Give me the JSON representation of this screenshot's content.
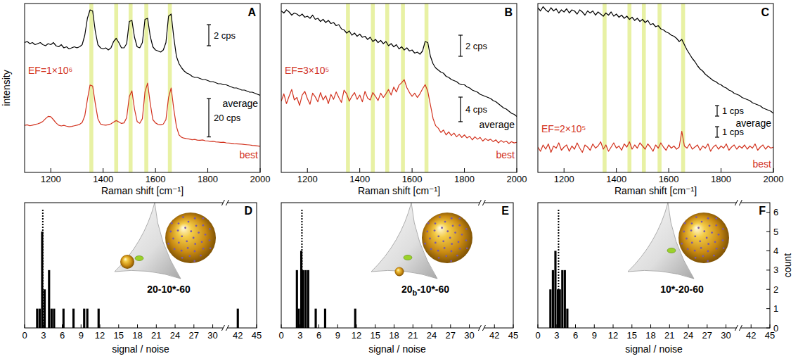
{
  "chart_data": [
    {
      "type": "line",
      "title": "A",
      "xlabel": "Raman shift [cm⁻¹]",
      "ylabel": "intensity",
      "x": [
        1100,
        1110,
        1120,
        1130,
        1140,
        1150,
        1160,
        1170,
        1180,
        1190,
        1200,
        1210,
        1220,
        1230,
        1240,
        1250,
        1260,
        1270,
        1280,
        1290,
        1300,
        1310,
        1320,
        1330,
        1340,
        1350,
        1360,
        1370,
        1380,
        1390,
        1400,
        1410,
        1420,
        1430,
        1440,
        1450,
        1460,
        1470,
        1480,
        1490,
        1500,
        1510,
        1520,
        1530,
        1540,
        1550,
        1560,
        1570,
        1580,
        1590,
        1600,
        1610,
        1620,
        1630,
        1640,
        1650,
        1660,
        1670,
        1680,
        1690,
        1700,
        1710,
        1720,
        1730,
        1740,
        1750,
        1760,
        1770,
        1780,
        1790,
        1800,
        1810,
        1820,
        1830,
        1840,
        1850,
        1860,
        1870,
        1880,
        1890,
        1900,
        1910,
        1920,
        1930,
        1940,
        1950,
        1960,
        1970,
        1980,
        1990,
        2000
      ],
      "xlim": [
        1100,
        2000
      ],
      "xticks": [
        1200,
        1400,
        1600,
        1800,
        2000
      ],
      "tick_labels": "x",
      "bands": [
        1355,
        1450,
        1505,
        1565,
        1655
      ],
      "series": [
        {
          "name": "average",
          "color": "#000000",
          "ylim": [
            0,
            16
          ],
          "scale_bar": {
            "value": 2,
            "label": "2 cps"
          },
          "values": [
            12.3,
            12.4,
            12.2,
            12.3,
            12.1,
            12.2,
            12.3,
            12.1,
            12.0,
            12.2,
            12.1,
            12.3,
            12.0,
            11.9,
            12.1,
            11.8,
            11.9,
            11.7,
            11.8,
            11.9,
            11.8,
            11.9,
            12.1,
            13.0,
            14.6,
            15.4,
            15.3,
            13.4,
            12.1,
            11.8,
            11.7,
            11.8,
            11.6,
            11.8,
            12.4,
            12.7,
            12.3,
            11.8,
            11.8,
            12.2,
            14.3,
            14.4,
            12.8,
            11.9,
            11.8,
            12.3,
            14.5,
            14.6,
            12.9,
            11.9,
            11.6,
            11.5,
            11.4,
            11.6,
            12.3,
            14.8,
            15.0,
            12.8,
            11.0,
            10.3,
            9.9,
            9.6,
            9.4,
            9.3,
            9.1,
            9.0,
            9.0,
            8.9,
            8.8,
            8.8,
            8.7,
            8.6,
            8.6,
            8.5,
            8.4,
            8.4,
            8.3,
            8.3,
            8.2,
            8.1,
            8.0,
            8.0,
            7.9,
            7.8,
            7.8,
            7.7,
            7.6,
            7.6,
            7.5,
            7.4,
            7.3
          ]
        },
        {
          "name": "best",
          "color": "#d2321e",
          "annotation": "EF=1×10⁶",
          "ylim": [
            0,
            88
          ],
          "scale_bar": {
            "value": 20,
            "label": "20 cps"
          },
          "values": [
            24.5,
            24.8,
            24.3,
            24.6,
            25.0,
            25.3,
            25.8,
            26.6,
            28.0,
            29.2,
            29.0,
            27.5,
            25.8,
            24.6,
            24.2,
            24.5,
            24.1,
            23.8,
            24.0,
            24.3,
            24.6,
            25.0,
            26.0,
            29.5,
            38.0,
            45.5,
            45.0,
            36.0,
            28.0,
            25.2,
            24.8,
            24.6,
            24.9,
            25.3,
            26.2,
            27.0,
            26.3,
            25.5,
            25.8,
            28.5,
            39.5,
            42.5,
            33.0,
            26.5,
            25.6,
            28.0,
            42.0,
            46.5,
            36.0,
            27.5,
            25.8,
            25.0,
            24.8,
            25.2,
            27.5,
            39.0,
            44.0,
            33.0,
            24.0,
            19.5,
            18.3,
            17.8,
            17.6,
            17.4,
            17.0,
            17.2,
            16.8,
            16.7,
            16.9,
            16.5,
            16.4,
            16.2,
            16.3,
            15.9,
            15.8,
            15.6,
            15.7,
            15.4,
            15.3,
            15.2,
            15.0,
            14.9,
            14.8,
            14.7,
            14.5,
            14.4,
            14.3,
            14.1,
            14.0,
            13.8,
            13.6
          ]
        }
      ]
    },
    {
      "type": "line",
      "title": "B",
      "xlabel": "Raman shift [cm⁻¹]",
      "x": [
        1100,
        1110,
        1120,
        1130,
        1140,
        1150,
        1160,
        1170,
        1180,
        1190,
        1200,
        1210,
        1220,
        1230,
        1240,
        1250,
        1260,
        1270,
        1280,
        1290,
        1300,
        1310,
        1320,
        1330,
        1340,
        1350,
        1360,
        1370,
        1380,
        1390,
        1400,
        1410,
        1420,
        1430,
        1440,
        1450,
        1460,
        1470,
        1480,
        1490,
        1500,
        1510,
        1520,
        1530,
        1540,
        1550,
        1560,
        1570,
        1580,
        1590,
        1600,
        1610,
        1620,
        1630,
        1640,
        1650,
        1660,
        1670,
        1680,
        1690,
        1700,
        1710,
        1720,
        1730,
        1740,
        1750,
        1760,
        1770,
        1780,
        1790,
        1800,
        1810,
        1820,
        1830,
        1840,
        1850,
        1860,
        1870,
        1880,
        1890,
        1900,
        1910,
        1920,
        1930,
        1940,
        1950,
        1960,
        1970,
        1980,
        1990,
        2000
      ],
      "xlim": [
        1100,
        2000
      ],
      "xticks": [
        1200,
        1400,
        1600,
        1800,
        2000
      ],
      "tick_labels": "x",
      "bands": [
        1355,
        1450,
        1505,
        1565,
        1655
      ],
      "series": [
        {
          "name": "average",
          "color": "#000000",
          "ylim": [
            0,
            16
          ],
          "scale_bar": {
            "value": 2,
            "label": "2 cps"
          },
          "values": [
            15.3,
            15.1,
            15.4,
            15.2,
            14.9,
            15.1,
            15.0,
            14.8,
            15.0,
            14.7,
            14.8,
            14.6,
            14.9,
            14.5,
            14.6,
            14.3,
            14.5,
            14.2,
            14.4,
            14.1,
            14.2,
            13.9,
            14.0,
            13.6,
            13.5,
            13.2,
            13.4,
            13.0,
            13.2,
            12.9,
            13.1,
            12.8,
            12.9,
            12.6,
            12.8,
            12.4,
            12.6,
            12.3,
            12.5,
            12.2,
            12.4,
            12.0,
            12.2,
            11.9,
            12.1,
            11.7,
            11.9,
            11.6,
            11.8,
            11.5,
            11.6,
            11.3,
            11.4,
            11.2,
            11.5,
            12.4,
            12.3,
            11.0,
            10.3,
            9.9,
            9.7,
            9.5,
            9.4,
            9.1,
            9.0,
            8.8,
            8.7,
            8.6,
            8.4,
            8.3,
            8.3,
            8.1,
            8.0,
            7.8,
            7.7,
            7.6,
            7.4,
            7.3,
            7.2,
            7.1,
            7.0,
            6.8,
            6.7,
            6.5,
            6.3,
            6.1,
            6.0,
            5.8,
            5.6,
            5.5,
            5.3
          ]
        },
        {
          "name": "best",
          "color": "#d2321e",
          "annotation": "EF=3×10⁵",
          "ylim": [
            0,
            27.5
          ],
          "scale_bar": {
            "value": 4,
            "label": "4 cps"
          },
          "values": [
            11.6,
            12.8,
            11.2,
            12.4,
            13.5,
            11.8,
            12.2,
            10.9,
            12.6,
            13.2,
            12.0,
            11.1,
            12.9,
            12.3,
            11.5,
            13.0,
            11.8,
            12.5,
            11.2,
            12.7,
            11.9,
            13.1,
            12.2,
            11.4,
            13.4,
            12.8,
            11.6,
            12.4,
            13.0,
            11.9,
            12.6,
            11.5,
            13.2,
            12.1,
            11.8,
            13.0,
            12.4,
            11.7,
            12.9,
            12.2,
            12.8,
            13.5,
            12.6,
            13.9,
            13.1,
            14.2,
            14.6,
            15.1,
            13.8,
            13.0,
            12.4,
            12.9,
            12.2,
            12.8,
            13.6,
            14.3,
            13.2,
            11.0,
            8.8,
            7.6,
            7.2,
            6.5,
            6.9,
            6.1,
            6.6,
            6.0,
            6.4,
            5.8,
            6.2,
            5.7,
            6.1,
            5.6,
            5.9,
            5.3,
            5.8,
            5.4,
            5.7,
            5.1,
            5.5,
            5.2,
            5.4,
            5.0,
            5.3,
            4.8,
            5.2,
            4.9,
            5.1,
            4.7,
            5.0,
            4.8,
            4.9
          ]
        }
      ]
    },
    {
      "type": "line",
      "title": "C",
      "xlabel": "Raman shift [cm⁻¹]",
      "x": [
        1100,
        1110,
        1120,
        1130,
        1140,
        1150,
        1160,
        1170,
        1180,
        1190,
        1200,
        1210,
        1220,
        1230,
        1240,
        1250,
        1260,
        1270,
        1280,
        1290,
        1300,
        1310,
        1320,
        1330,
        1340,
        1350,
        1360,
        1370,
        1380,
        1390,
        1400,
        1410,
        1420,
        1430,
        1440,
        1450,
        1460,
        1470,
        1480,
        1490,
        1500,
        1510,
        1520,
        1530,
        1540,
        1550,
        1560,
        1570,
        1580,
        1590,
        1600,
        1610,
        1620,
        1630,
        1640,
        1650,
        1660,
        1670,
        1680,
        1690,
        1700,
        1710,
        1720,
        1730,
        1740,
        1750,
        1760,
        1770,
        1780,
        1790,
        1800,
        1810,
        1820,
        1830,
        1840,
        1850,
        1860,
        1870,
        1880,
        1890,
        1900,
        1910,
        1920,
        1930,
        1940,
        1950,
        1960,
        1970,
        1980,
        1990,
        2000
      ],
      "xlim": [
        1100,
        2000
      ],
      "xticks": [
        1200,
        1400,
        1600,
        1800,
        2000
      ],
      "tick_labels": "x",
      "bands": [
        1355,
        1450,
        1505,
        1565,
        1655
      ],
      "series": [
        {
          "name": "average",
          "color": "#000000",
          "ylim": [
            0,
            16
          ],
          "scale_bar": {
            "value": 1,
            "label": "1 cps"
          },
          "values": [
            15.6,
            15.3,
            15.7,
            15.4,
            15.2,
            15.6,
            15.3,
            15.5,
            15.1,
            15.4,
            15.2,
            15.5,
            15.1,
            15.4,
            15.3,
            15.0,
            15.4,
            15.2,
            14.9,
            15.3,
            15.1,
            15.3,
            14.9,
            15.2,
            15.0,
            14.8,
            15.1,
            14.9,
            15.2,
            14.8,
            15.0,
            14.7,
            14.9,
            14.6,
            14.8,
            14.5,
            14.7,
            14.4,
            14.6,
            14.3,
            14.5,
            14.2,
            14.4,
            14.0,
            14.1,
            13.8,
            13.9,
            13.6,
            13.5,
            13.3,
            13.2,
            13.0,
            12.9,
            12.7,
            12.4,
            12.6,
            12.1,
            11.6,
            11.2,
            10.8,
            10.5,
            10.1,
            9.8,
            9.6,
            9.3,
            9.1,
            8.9,
            8.7,
            8.6,
            8.4,
            8.3,
            8.1,
            8.0,
            7.8,
            7.7,
            7.5,
            7.4,
            7.3,
            7.1,
            7.0,
            6.9,
            6.8,
            6.6,
            6.5,
            6.4,
            6.3,
            6.1,
            6.0,
            5.9,
            5.8,
            5.6
          ]
        },
        {
          "name": "best",
          "color": "#d2321e",
          "annotation": "EF=2×10⁵",
          "ylim": [
            0,
            16
          ],
          "scale_bar": {
            "value": 1,
            "label": "1 cps"
          },
          "values": [
            2.4,
            2.0,
            2.6,
            2.2,
            2.7,
            1.9,
            2.5,
            2.3,
            2.8,
            2.1,
            2.4,
            2.6,
            2.0,
            2.5,
            2.2,
            2.8,
            2.3,
            1.9,
            2.6,
            2.4,
            2.1,
            2.7,
            2.3,
            2.5,
            2.9,
            2.2,
            2.6,
            2.0,
            2.4,
            2.8,
            2.3,
            2.5,
            2.1,
            2.7,
            2.4,
            2.9,
            2.2,
            2.6,
            2.3,
            2.8,
            2.5,
            2.2,
            2.7,
            2.4,
            2.0,
            2.6,
            2.3,
            2.8,
            2.4,
            2.1,
            2.6,
            2.3,
            2.5,
            2.2,
            2.4,
            3.9,
            2.5,
            2.3,
            2.7,
            2.2,
            2.4,
            2.6,
            2.1,
            2.5,
            2.3,
            2.7,
            2.0,
            2.4,
            2.6,
            2.2,
            2.5,
            2.3,
            2.7,
            2.1,
            2.4,
            2.6,
            2.2,
            2.5,
            2.3,
            2.6,
            2.2,
            2.5,
            2.3,
            2.7,
            2.1,
            2.4,
            2.6,
            2.2,
            2.5,
            2.3,
            2.4
          ]
        }
      ]
    },
    {
      "type": "histogram",
      "title": "D",
      "label": "20-10*-60",
      "xlabel": "signal / noise",
      "x": [
        2.0,
        2.4,
        2.8,
        3.2,
        3.9,
        4.3,
        4.7,
        6.2,
        7.8,
        9.5,
        10.0,
        11.8,
        42.0
      ],
      "values": [
        1,
        1,
        5,
        2,
        3,
        1,
        1,
        1,
        1,
        1,
        1,
        1,
        1
      ],
      "bin_width": 0.35,
      "reference_x": 2.9,
      "color": "#000000",
      "xlim": [
        0,
        45
      ],
      "axis_break": [
        32,
        40
      ],
      "xticks": [
        0,
        3,
        6,
        9,
        12,
        15,
        18,
        21,
        24,
        27,
        30,
        42,
        45
      ],
      "ylim": [
        0,
        6.5
      ],
      "tick_labels": "x"
    },
    {
      "type": "histogram",
      "title": "E",
      "label": "20b-10*-60",
      "xlabel": "signal / noise",
      "x": [
        2.5,
        2.8,
        3.2,
        3.5,
        3.9,
        4.3,
        5.5,
        7.0,
        11.8
      ],
      "values": [
        3,
        1,
        4,
        3,
        3,
        3,
        1,
        1,
        1
      ],
      "bin_width": 0.35,
      "reference_x": 3.3,
      "color": "#000000",
      "xlim": [
        0,
        45
      ],
      "axis_break": [
        32,
        40
      ],
      "xticks": [
        0,
        3,
        6,
        9,
        12,
        15,
        18,
        21,
        24,
        27,
        30,
        42,
        45
      ],
      "ylim": [
        0,
        6.5
      ],
      "tick_labels": "x"
    },
    {
      "type": "histogram",
      "title": "F",
      "label": "10*-20-60",
      "xlabel": "signal / noise",
      "ylabel": "count",
      "x": [
        2.0,
        2.4,
        2.8,
        3.2,
        3.5,
        3.9,
        4.3,
        4.7
      ],
      "values": [
        2,
        3,
        4,
        2,
        2,
        3,
        3,
        1
      ],
      "bin_width": 0.35,
      "reference_x": 3.3,
      "color": "#000000",
      "xlim": [
        0,
        45
      ],
      "axis_break": [
        32,
        40
      ],
      "xticks": [
        0,
        3,
        6,
        9,
        12,
        15,
        18,
        21,
        24,
        27,
        30,
        42,
        45
      ],
      "ylim": [
        0,
        6.5
      ],
      "yticks": [
        0,
        1,
        2,
        3,
        4,
        5,
        6
      ],
      "tick_labels": true
    }
  ]
}
